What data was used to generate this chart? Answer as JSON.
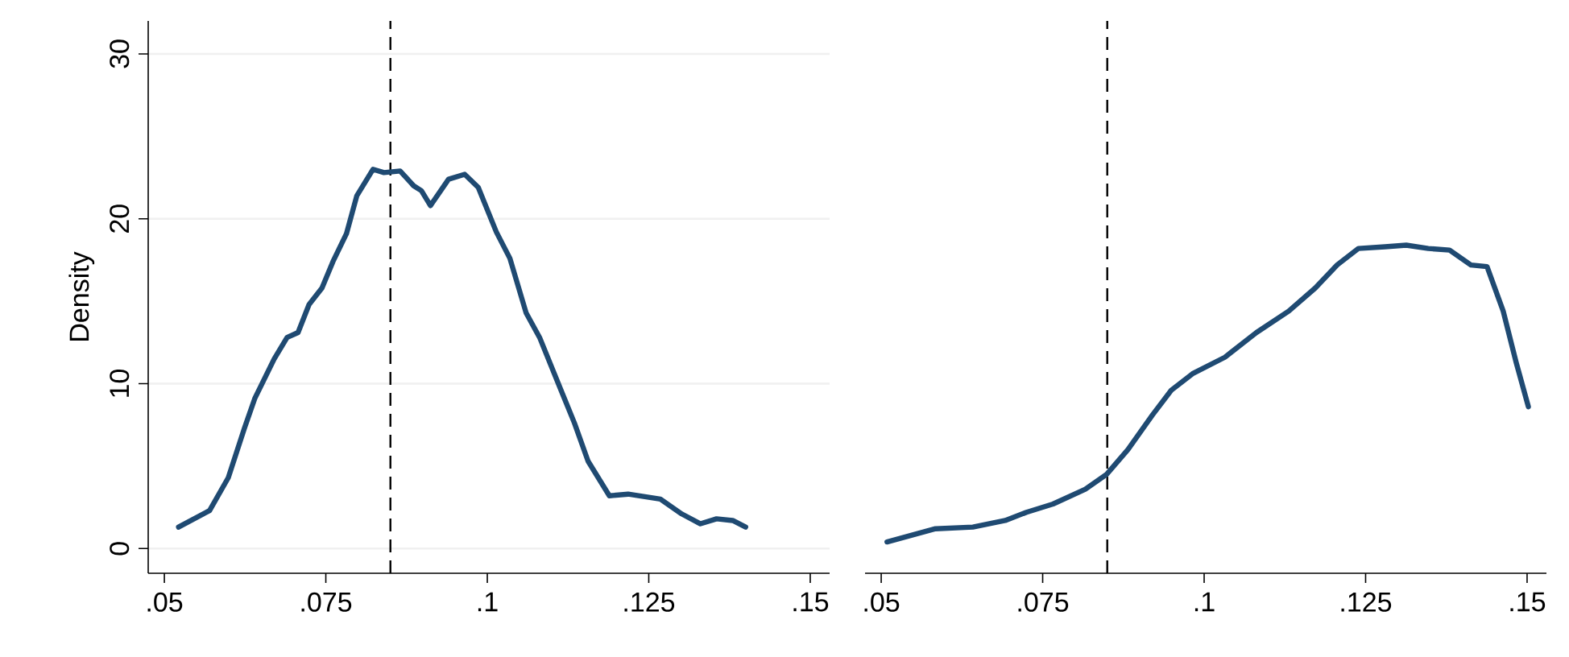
{
  "chart_data": [
    {
      "type": "line",
      "ylabel": "Density",
      "grid": "y",
      "line_style": "solid",
      "x": [
        0.0522,
        0.057,
        0.0599,
        0.0624,
        0.064,
        0.067,
        0.069,
        0.0707,
        0.0724,
        0.0744,
        0.0761,
        0.0782,
        0.0798,
        0.0823,
        0.084,
        0.0865,
        0.0886,
        0.0898,
        0.0912,
        0.094,
        0.0965,
        0.0986,
        0.1014,
        0.1035,
        0.106,
        0.1081,
        0.111,
        0.1135,
        0.1156,
        0.1189,
        0.1218,
        0.1268,
        0.1301,
        0.133,
        0.1355,
        0.138,
        0.14
      ],
      "series": [
        {
          "color": "#1f4a72",
          "values": [
            1.3,
            2.3,
            4.3,
            7.3,
            9.1,
            11.5,
            12.8,
            13.1,
            14.8,
            15.8,
            17.4,
            19.1,
            21.4,
            23.0,
            22.8,
            22.9,
            22.0,
            21.7,
            20.8,
            22.4,
            22.7,
            21.9,
            19.2,
            17.6,
            14.3,
            12.8,
            10.0,
            7.6,
            5.3,
            3.2,
            3.3,
            3.0,
            2.1,
            1.5,
            1.8,
            1.7,
            1.3
          ]
        }
      ],
      "xlim": [
        0.0475,
        0.153
      ],
      "ylim": [
        -1.5,
        32
      ],
      "xticks": [
        {
          "value": 0.05,
          "label": ".05"
        },
        {
          "value": 0.075,
          "label": ".075"
        },
        {
          "value": 0.1,
          "label": ".1"
        },
        {
          "value": 0.125,
          "label": ".125"
        },
        {
          "value": 0.15,
          "label": ".15"
        }
      ],
      "yticks": [
        0,
        10,
        20,
        30
      ],
      "ref_lines": [
        {
          "axis": "x",
          "value": 0.085,
          "color": "#000000",
          "line_style": "dashed"
        }
      ]
    },
    {
      "type": "line",
      "grid": "y",
      "line_style": "solid",
      "tick_labels": "x",
      "x": [
        0.0509,
        0.0584,
        0.0642,
        0.0692,
        0.0725,
        0.0766,
        0.0816,
        0.0849,
        0.0882,
        0.092,
        0.0949,
        0.0982,
        0.1032,
        0.1081,
        0.1131,
        0.1172,
        0.1206,
        0.1239,
        0.128,
        0.1313,
        0.1347,
        0.138,
        0.1413,
        0.1438,
        0.1463,
        0.1483,
        0.1502
      ],
      "series": [
        {
          "color": "#1f4a72",
          "values": [
            0.4,
            1.2,
            1.3,
            1.7,
            2.2,
            2.7,
            3.6,
            4.5,
            6.0,
            8.1,
            9.6,
            10.6,
            11.6,
            13.1,
            14.4,
            15.8,
            17.2,
            18.2,
            18.3,
            18.4,
            18.2,
            18.1,
            17.2,
            17.1,
            14.4,
            11.3,
            8.6
          ]
        }
      ],
      "xlim": [
        0.0475,
        0.153
      ],
      "ylim": [
        -1.5,
        32
      ],
      "xticks": [
        {
          "value": 0.05,
          "label": ".05"
        },
        {
          "value": 0.075,
          "label": ".075"
        },
        {
          "value": 0.1,
          "label": ".1"
        },
        {
          "value": 0.125,
          "label": ".125"
        },
        {
          "value": 0.15,
          "label": ".15"
        }
      ],
      "yticks": [
        0,
        10,
        20,
        30
      ],
      "ref_lines": [
        {
          "axis": "x",
          "value": 0.085,
          "color": "#000000",
          "line_style": "dashed"
        }
      ]
    }
  ]
}
